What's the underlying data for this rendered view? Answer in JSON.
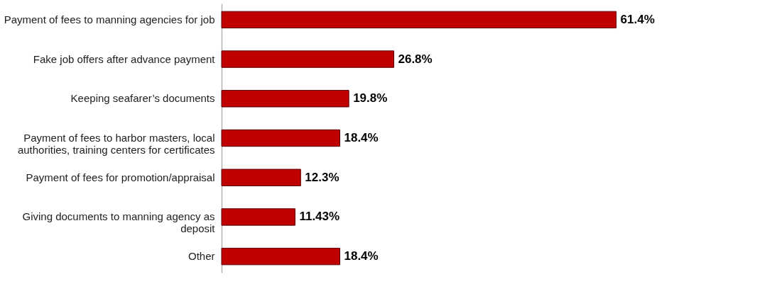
{
  "chart_data": {
    "type": "bar",
    "orientation": "horizontal",
    "categories": [
      "Payment of fees to manning agencies for job",
      "Fake job offers after advance payment",
      "Keeping seafarer’s documents",
      "Payment of fees to harbor masters, local\nauthorities, training centers for certificates",
      "Payment of fees for promotion/appraisal",
      "Giving documents to manning agency as\ndeposit",
      "Other"
    ],
    "values": [
      61.4,
      26.8,
      19.8,
      18.4,
      12.3,
      11.43,
      18.4
    ],
    "value_labels": [
      "61.4%",
      "26.8%",
      "19.8%",
      "18.4%",
      "12.3%",
      "11.43%",
      "18.4%"
    ],
    "color": "#c00000",
    "grid": false,
    "tick_labels": "y"
  }
}
